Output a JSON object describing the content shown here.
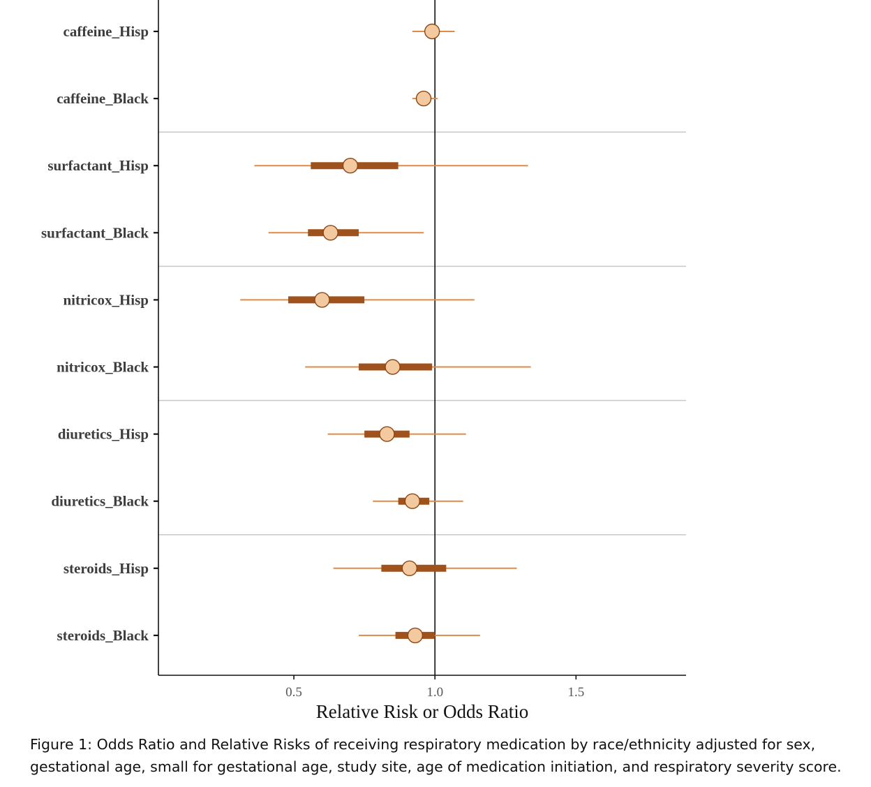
{
  "caption": "Figure 1: Odds Ratio and Relative Risks of receiving respiratory medication by race/ethnicity adjusted for sex, gestational age, small for gestational age, study site, age of medication initiation, and respiratory severity score.",
  "colors": {
    "thin_line": "#e08a45",
    "thick_line": "#a0521c",
    "point_fill": "#f3c9a0",
    "point_stroke": "#8b4513",
    "ref_line": "#111111",
    "separator": "#c8c8c8",
    "axis": "#111111"
  },
  "chart_data": {
    "type": "forest",
    "title": "",
    "xlabel": "Relative Risk or Odds Ratio",
    "ylabel": "",
    "xlim": [
      0.02,
      1.89
    ],
    "xticks": [
      0.5,
      1.0,
      1.5
    ],
    "xtick_labels": [
      "0.5",
      "1.0",
      "1.5"
    ],
    "reference_line": 1.0,
    "group_separators_after": [
      "caffeine_Black",
      "surfactant_Black",
      "nitricox_Black",
      "diuretics_Black"
    ],
    "rows": [
      {
        "label": "caffeine_Hisp",
        "estimate": 0.99,
        "inner": [
          0.99,
          0.99
        ],
        "outer": [
          0.92,
          1.07
        ]
      },
      {
        "label": "caffeine_Black",
        "estimate": 0.96,
        "inner": [
          0.96,
          0.96
        ],
        "outer": [
          0.92,
          1.01
        ]
      },
      {
        "label": "surfactant_Hisp",
        "estimate": 0.7,
        "inner": [
          0.56,
          0.87
        ],
        "outer": [
          0.36,
          1.33
        ]
      },
      {
        "label": "surfactant_Black",
        "estimate": 0.63,
        "inner": [
          0.55,
          0.73
        ],
        "outer": [
          0.41,
          0.96
        ]
      },
      {
        "label": "nitricox_Hisp",
        "estimate": 0.6,
        "inner": [
          0.48,
          0.75
        ],
        "outer": [
          0.31,
          1.14
        ]
      },
      {
        "label": "nitricox_Black",
        "estimate": 0.85,
        "inner": [
          0.73,
          0.99
        ],
        "outer": [
          0.54,
          1.34
        ]
      },
      {
        "label": "diuretics_Hisp",
        "estimate": 0.83,
        "inner": [
          0.75,
          0.91
        ],
        "outer": [
          0.62,
          1.11
        ]
      },
      {
        "label": "diuretics_Black",
        "estimate": 0.92,
        "inner": [
          0.87,
          0.98
        ],
        "outer": [
          0.78,
          1.1
        ]
      },
      {
        "label": "steroids_Hisp",
        "estimate": 0.91,
        "inner": [
          0.81,
          1.04
        ],
        "outer": [
          0.64,
          1.29
        ]
      },
      {
        "label": "steroids_Black",
        "estimate": 0.93,
        "inner": [
          0.86,
          1.0
        ],
        "outer": [
          0.73,
          1.16
        ]
      }
    ]
  }
}
